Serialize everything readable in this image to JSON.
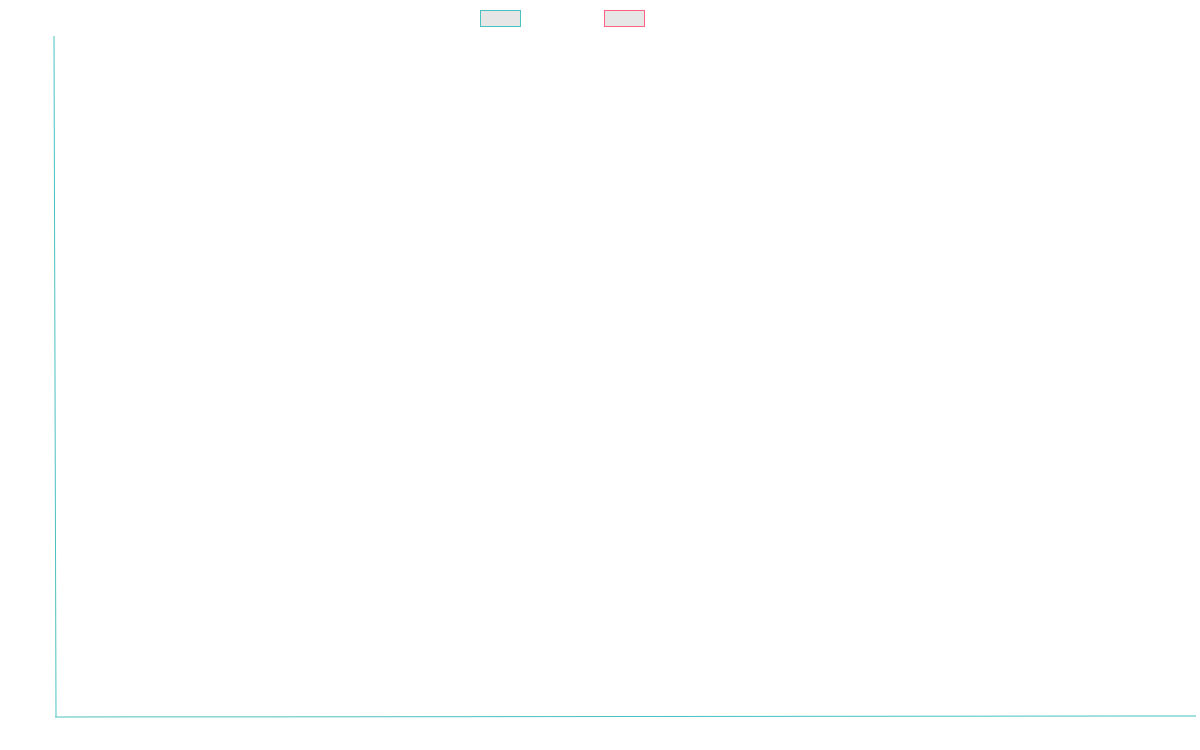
{
  "chart_data": {
    "type": "line",
    "title": "",
    "xlabel": "",
    "ylabel": "",
    "grid": false,
    "legend_placement": "top-center",
    "series": [
      {
        "name": "",
        "values": [],
        "color": "#4BC0C0",
        "fill": "#E6E6E6"
      },
      {
        "name": "",
        "values": [],
        "color": "#FF6384",
        "fill": "#E6E6E6"
      }
    ],
    "axes": {
      "color": "#4BC0C0",
      "x_ticks": [],
      "y_ticks": []
    }
  }
}
